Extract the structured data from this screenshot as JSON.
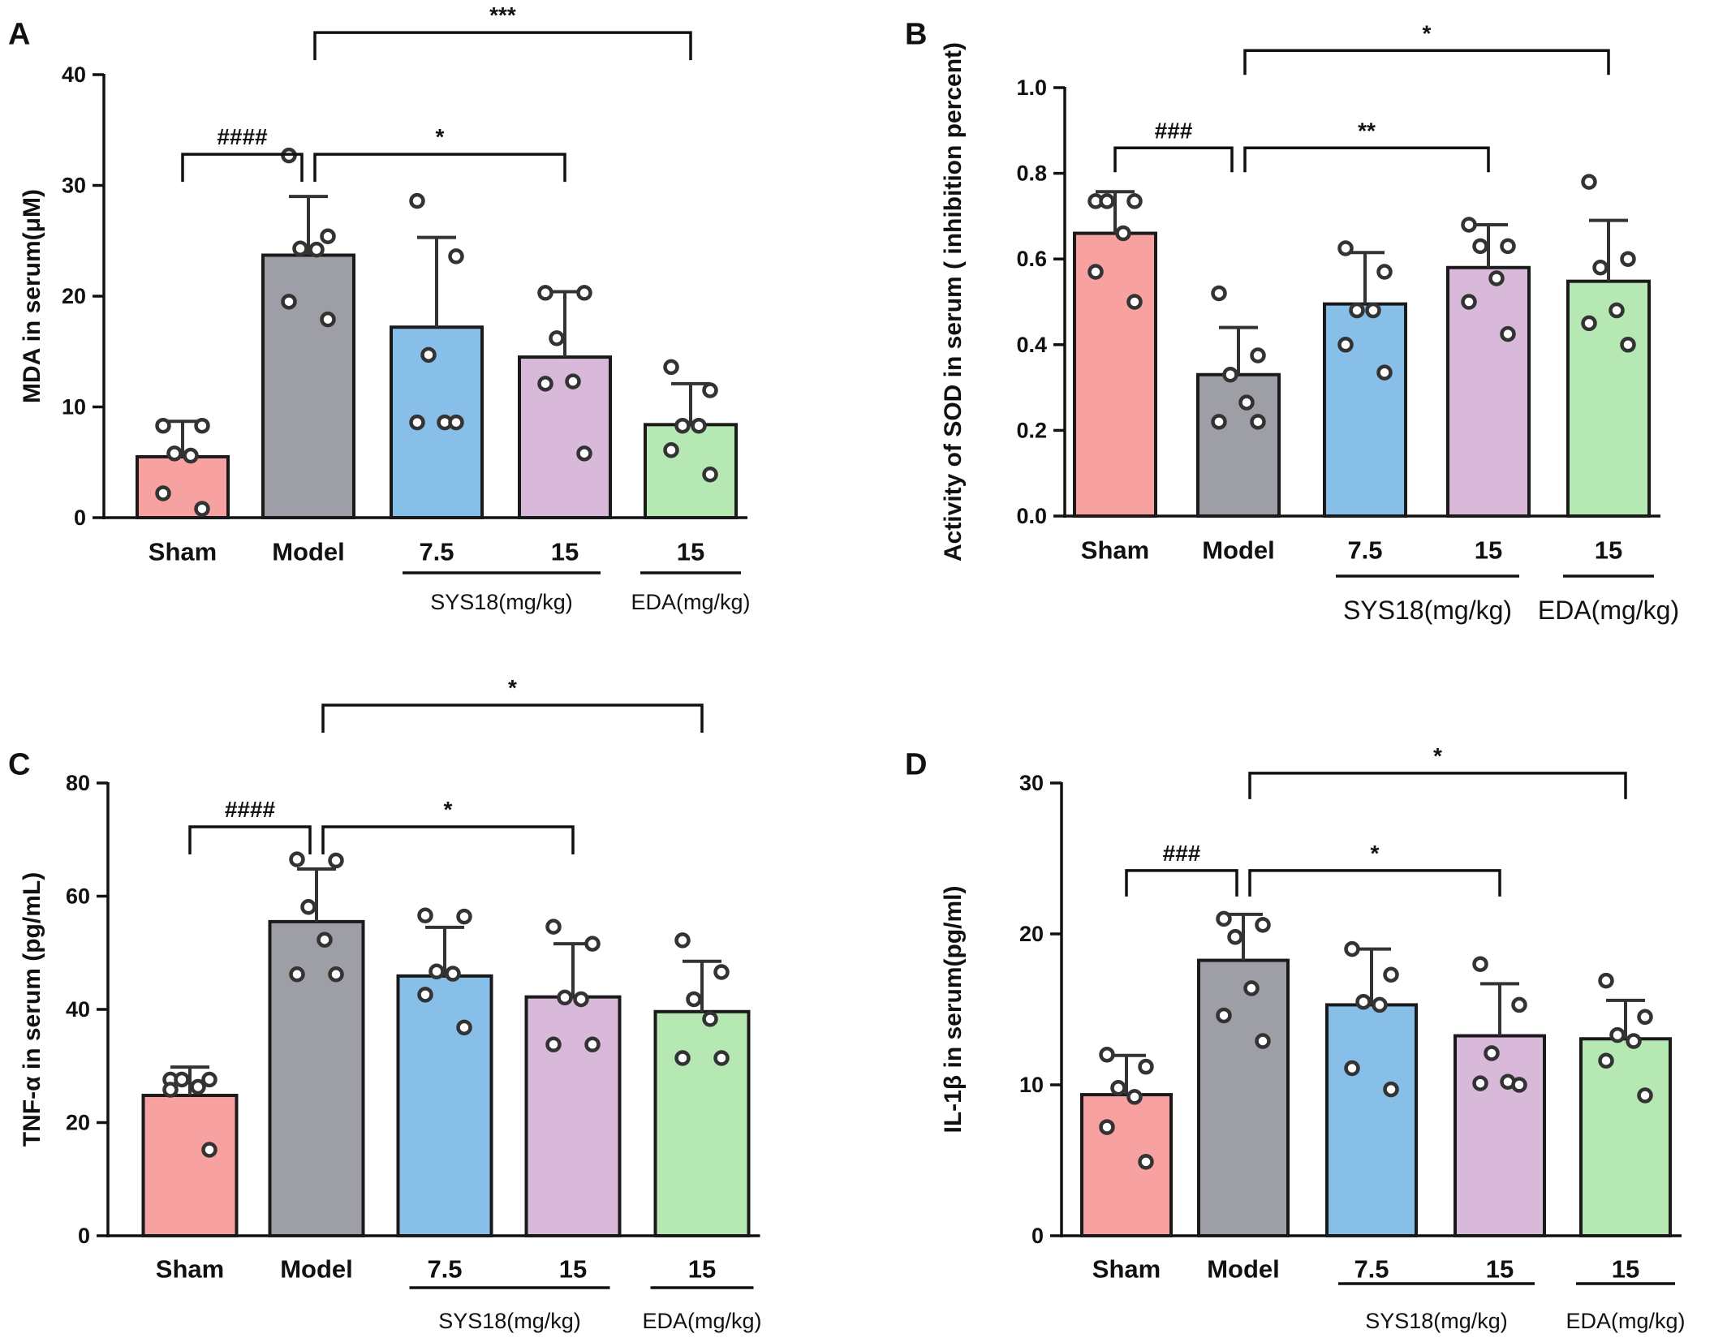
{
  "figure": {
    "colors": {
      "Sham": "#f7a1a1",
      "Model": "#9e9ea6",
      "SYS18 7.5": "#87bfe9",
      "SYS18 15": "#d8b9d9",
      "EDA 15": "#b5e8b3",
      "outline": "#1a1a1a",
      "errorbar": "#333333",
      "point_fill": "#ffffff"
    }
  },
  "chart_data": [
    {
      "panel": "A",
      "type": "bar",
      "categories": [
        "Sham",
        "Model",
        "7.5",
        "15",
        "15"
      ],
      "group_labels": [
        {
          "label": "SYS18(mg/kg)",
          "covers": [
            2,
            3
          ]
        },
        {
          "label": "EDA(mg/kg)",
          "covers": [
            4
          ]
        }
      ],
      "values": [
        5.5,
        23.7,
        17.2,
        14.5,
        8.4
      ],
      "sd": [
        3.2,
        5.3,
        8.1,
        5.9,
        3.7
      ],
      "points": [
        [
          8.3,
          8.3,
          5.8,
          5.6,
          2.2,
          0.8
        ],
        [
          32.7,
          25.4,
          24.3,
          24.2,
          19.5,
          17.9
        ],
        [
          28.6,
          23.6,
          14.7,
          8.6,
          8.6,
          8.6
        ],
        [
          20.3,
          20.3,
          16.2,
          12.3,
          12.1,
          5.8
        ],
        [
          13.6,
          11.5,
          8.3,
          8.3,
          6.1,
          3.9
        ]
      ],
      "xlabel": "",
      "ylabel": "MDA in serum(μM)",
      "ylim": [
        0,
        40
      ],
      "yticks": [
        "0",
        "10",
        "20",
        "30",
        "40"
      ],
      "brackets": [
        {
          "from": 0,
          "to": 1,
          "label": "####"
        },
        {
          "from": 1,
          "to": 3,
          "label": "*"
        },
        {
          "from": 1,
          "to": 4,
          "label": "***"
        }
      ]
    },
    {
      "panel": "B",
      "type": "bar",
      "categories": [
        "Sham",
        "Model",
        "7.5",
        "15",
        "15"
      ],
      "group_labels": [
        {
          "label": "SYS18(mg/kg)",
          "covers": [
            2,
            3
          ]
        },
        {
          "label": "EDA(mg/kg)",
          "covers": [
            4
          ]
        }
      ],
      "values": [
        0.66,
        0.33,
        0.495,
        0.58,
        0.548
      ],
      "sd": [
        0.097,
        0.11,
        0.12,
        0.1,
        0.142
      ],
      "points": [
        [
          0.735,
          0.735,
          0.735,
          0.66,
          0.57,
          0.5
        ],
        [
          0.52,
          0.375,
          0.33,
          0.265,
          0.22,
          0.22
        ],
        [
          0.625,
          0.57,
          0.48,
          0.48,
          0.4,
          0.335
        ],
        [
          0.68,
          0.63,
          0.63,
          0.555,
          0.5,
          0.425
        ],
        [
          0.78,
          0.6,
          0.58,
          0.48,
          0.45,
          0.4
        ]
      ],
      "xlabel": "",
      "ylabel": "Activity of SOD in serum ( inhibition percent)",
      "ylim": [
        0,
        1.0
      ],
      "yticks": [
        "0.0",
        "0.2",
        "0.4",
        "0.6",
        "0.8",
        "1.0"
      ],
      "brackets": [
        {
          "from": 0,
          "to": 1,
          "label": "###"
        },
        {
          "from": 1,
          "to": 3,
          "label": "**"
        },
        {
          "from": 1,
          "to": 4,
          "label": "*"
        }
      ]
    },
    {
      "panel": "C",
      "type": "bar",
      "categories": [
        "Sham",
        "Model",
        "7.5",
        "15",
        "15"
      ],
      "group_labels": [
        {
          "label": "SYS18(mg/kg)",
          "covers": [
            2,
            3
          ]
        },
        {
          "label": "EDA(mg/kg)",
          "covers": [
            4
          ]
        }
      ],
      "values": [
        24.8,
        55.5,
        45.9,
        42.2,
        39.6
      ],
      "sd": [
        5.0,
        9.3,
        8.6,
        9.4,
        8.9
      ],
      "points": [
        [
          27.6,
          27.6,
          27.6,
          26.3,
          25.8,
          15.2
        ],
        [
          66.5,
          66.3,
          58.1,
          52.3,
          46.2,
          46.2
        ],
        [
          56.6,
          56.4,
          46.7,
          46.3,
          42.6,
          36.8
        ],
        [
          54.6,
          51.6,
          42.1,
          41.8,
          33.8,
          33.8
        ],
        [
          52.2,
          46.6,
          41.8,
          38.3,
          31.4,
          31.4
        ]
      ],
      "xlabel": "",
      "ylabel": "TNF-α in serum (pg/mL)",
      "ylim": [
        0,
        80
      ],
      "yticks": [
        "0",
        "20",
        "40",
        "60",
        "80"
      ],
      "brackets": [
        {
          "from": 0,
          "to": 1,
          "label": "####"
        },
        {
          "from": 1,
          "to": 3,
          "label": "*"
        },
        {
          "from": 1,
          "to": 4,
          "label": "*"
        }
      ]
    },
    {
      "panel": "D",
      "type": "bar",
      "categories": [
        "Sham",
        "Model",
        "7.5",
        "15",
        "15"
      ],
      "group_labels": [
        {
          "label": "SYS18(mg/kg)",
          "covers": [
            2,
            3
          ]
        },
        {
          "label": "EDA(mg/kg)",
          "covers": [
            4
          ]
        }
      ],
      "values": [
        9.35,
        18.25,
        15.3,
        13.25,
        13.05
      ],
      "sd": [
        2.6,
        3.05,
        3.7,
        3.45,
        2.55
      ],
      "points": [
        [
          12.0,
          11.2,
          9.8,
          9.2,
          7.2,
          4.9
        ],
        [
          21.0,
          20.6,
          19.8,
          16.4,
          14.6,
          12.9
        ],
        [
          19.0,
          17.3,
          15.5,
          15.3,
          11.1,
          9.7
        ],
        [
          18.0,
          15.3,
          12.1,
          10.2,
          10.1,
          10.0
        ],
        [
          16.9,
          14.5,
          13.3,
          12.9,
          11.6,
          9.3
        ]
      ],
      "xlabel": "",
      "ylabel": "IL-1β in serum(pg/ml)",
      "ylim": [
        0,
        30
      ],
      "yticks": [
        "0",
        "10",
        "20",
        "30"
      ],
      "brackets": [
        {
          "from": 0,
          "to": 1,
          "label": "###"
        },
        {
          "from": 1,
          "to": 3,
          "label": "*"
        },
        {
          "from": 1,
          "to": 4,
          "label": "*"
        }
      ]
    }
  ]
}
